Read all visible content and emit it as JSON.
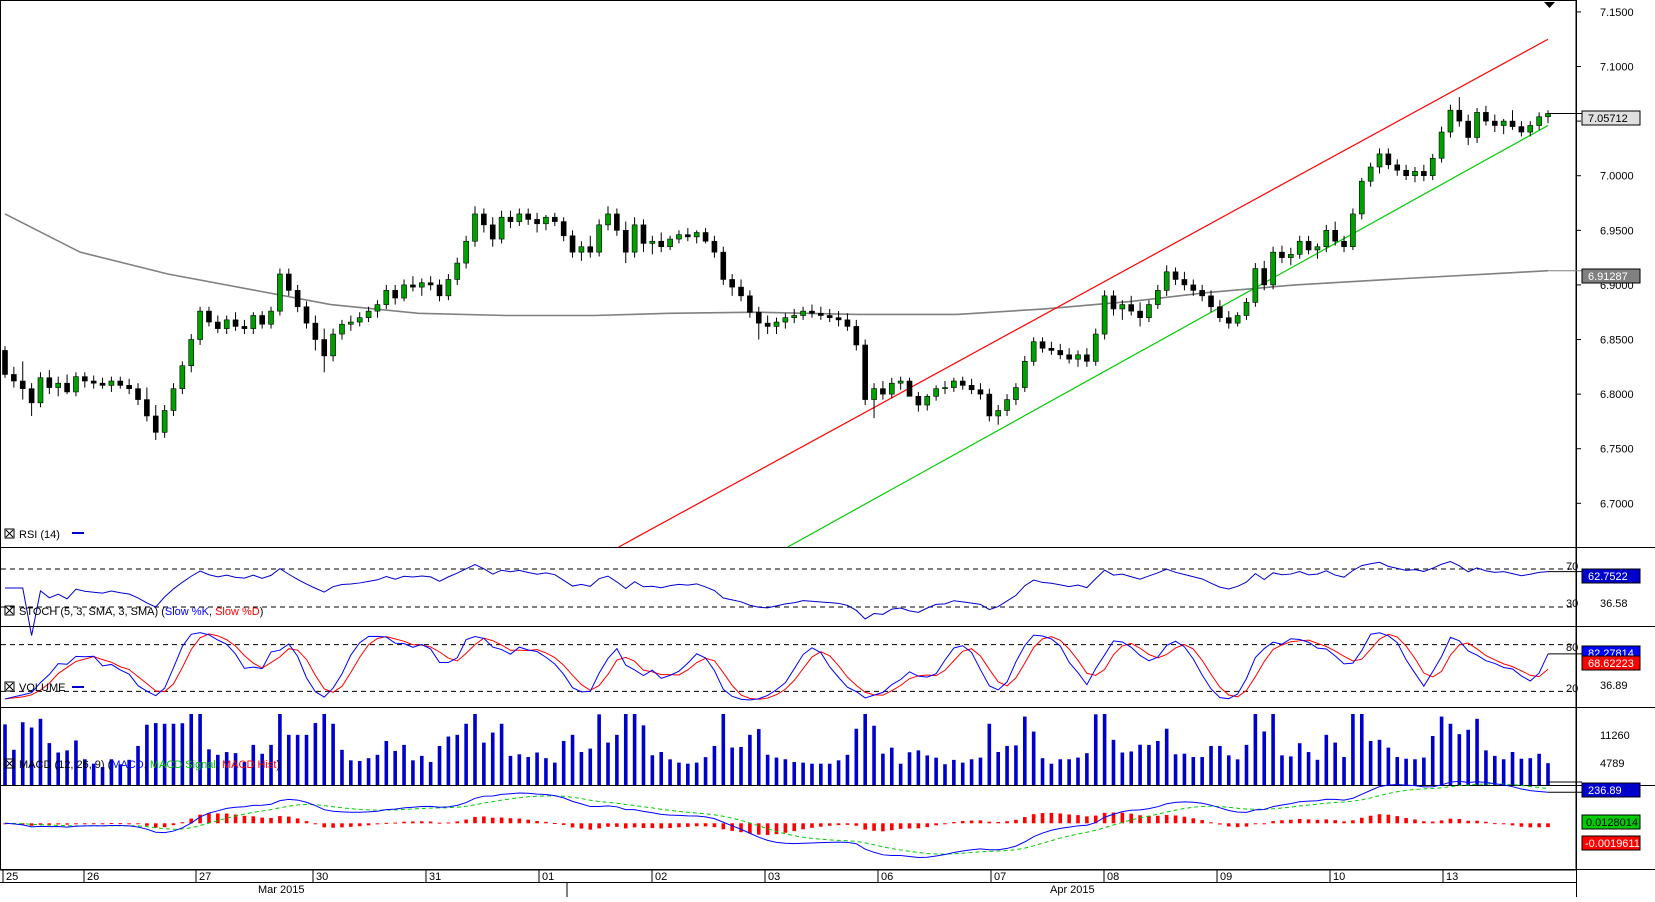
{
  "chart_data": {
    "type": "candlestick",
    "price_panel": {
      "ylim": [
        6.66,
        7.16
      ],
      "yticks": [
        "7.1500",
        "7.1000",
        "7.0500",
        "7.0000",
        "6.9500",
        "6.9000",
        "6.8500",
        "6.8000",
        "6.7500",
        "6.7000"
      ],
      "last_price_label": "7.05712",
      "ma_label": "6.91287",
      "ma_line": [
        [
          0,
          6.965
        ],
        [
          60,
          6.93
        ],
        [
          130,
          6.91
        ],
        [
          200,
          6.895
        ],
        [
          260,
          6.882
        ],
        [
          330,
          6.874
        ],
        [
          400,
          6.872
        ],
        [
          470,
          6.872
        ],
        [
          530,
          6.874
        ],
        [
          600,
          6.875
        ],
        [
          680,
          6.873
        ],
        [
          760,
          6.873
        ],
        [
          830,
          6.878
        ],
        [
          900,
          6.885
        ],
        [
          960,
          6.893
        ],
        [
          1030,
          6.9
        ],
        [
          1120,
          6.906
        ],
        [
          1200,
          6.911
        ],
        [
          1232,
          6.913
        ]
      ],
      "channel_upper": [
        [
          490,
          6.66
        ],
        [
          1232,
          7.125
        ]
      ],
      "channel_lower": [
        [
          625,
          6.66
        ],
        [
          1232,
          7.046
        ]
      ],
      "ohlc": [
        [
          6.84,
          6.844,
          6.815,
          6.818
        ],
        [
          6.818,
          6.825,
          6.806,
          6.812
        ],
        [
          6.812,
          6.83,
          6.795,
          6.805
        ],
        [
          6.805,
          6.81,
          6.78,
          6.792
        ],
        [
          6.792,
          6.82,
          6.788,
          6.815
        ],
        [
          6.815,
          6.822,
          6.8,
          6.806
        ],
        [
          6.806,
          6.816,
          6.798,
          6.81
        ],
        [
          6.81,
          6.818,
          6.8,
          6.802
        ],
        [
          6.802,
          6.82,
          6.798,
          6.816
        ],
        [
          6.816,
          6.82,
          6.806,
          6.812
        ],
        [
          6.812,
          6.817,
          6.805,
          6.81
        ],
        [
          6.81,
          6.815,
          6.805,
          6.808
        ],
        [
          6.808,
          6.816,
          6.802,
          6.812
        ],
        [
          6.812,
          6.816,
          6.805,
          6.808
        ],
        [
          6.808,
          6.814,
          6.8,
          6.805
        ],
        [
          6.805,
          6.81,
          6.79,
          6.795
        ],
        [
          6.795,
          6.806,
          6.775,
          6.78
        ],
        [
          6.78,
          6.79,
          6.758,
          6.765
        ],
        [
          6.765,
          6.79,
          6.76,
          6.785
        ],
        [
          6.785,
          6.81,
          6.78,
          6.805
        ],
        [
          6.805,
          6.83,
          6.8,
          6.826
        ],
        [
          6.826,
          6.855,
          6.82,
          6.85
        ],
        [
          6.85,
          6.88,
          6.845,
          6.876
        ],
        [
          6.876,
          6.88,
          6.862,
          6.866
        ],
        [
          6.866,
          6.872,
          6.856,
          6.86
        ],
        [
          6.86,
          6.872,
          6.855,
          6.868
        ],
        [
          6.868,
          6.875,
          6.858,
          6.862
        ],
        [
          6.862,
          6.868,
          6.855,
          6.86
        ],
        [
          6.86,
          6.875,
          6.855,
          6.872
        ],
        [
          6.872,
          6.876,
          6.86,
          6.864
        ],
        [
          6.864,
          6.88,
          6.86,
          6.876
        ],
        [
          6.876,
          6.915,
          6.872,
          6.91
        ],
        [
          6.91,
          6.915,
          6.89,
          6.895
        ],
        [
          6.895,
          6.9,
          6.875,
          6.88
        ],
        [
          6.88,
          6.885,
          6.86,
          6.865
        ],
        [
          6.865,
          6.872,
          6.84,
          6.85
        ],
        [
          6.85,
          6.86,
          6.82,
          6.835
        ],
        [
          6.835,
          6.86,
          6.83,
          6.855
        ],
        [
          6.855,
          6.868,
          6.85,
          6.864
        ],
        [
          6.864,
          6.872,
          6.858,
          6.866
        ],
        [
          6.866,
          6.875,
          6.862,
          6.87
        ],
        [
          6.87,
          6.88,
          6.866,
          6.876
        ],
        [
          6.876,
          6.886,
          6.87,
          6.882
        ],
        [
          6.882,
          6.9,
          6.878,
          6.895
        ],
        [
          6.895,
          6.9,
          6.882,
          6.888
        ],
        [
          6.888,
          6.905,
          6.885,
          6.9
        ],
        [
          6.9,
          6.908,
          6.894,
          6.898
        ],
        [
          6.898,
          6.906,
          6.89,
          6.902
        ],
        [
          6.902,
          6.908,
          6.895,
          6.9
        ],
        [
          6.9,
          6.905,
          6.885,
          6.89
        ],
        [
          6.89,
          6.91,
          6.886,
          6.905
        ],
        [
          6.905,
          6.925,
          6.9,
          6.92
        ],
        [
          6.92,
          6.945,
          6.915,
          6.94
        ],
        [
          6.94,
          6.972,
          6.935,
          6.965
        ],
        [
          6.965,
          6.97,
          6.948,
          6.955
        ],
        [
          6.955,
          6.962,
          6.935,
          6.942
        ],
        [
          6.942,
          6.968,
          6.938,
          6.962
        ],
        [
          6.962,
          6.968,
          6.952,
          6.958
        ],
        [
          6.958,
          6.97,
          6.954,
          6.965
        ],
        [
          6.965,
          6.97,
          6.955,
          6.96
        ],
        [
          6.96,
          6.966,
          6.948,
          6.956
        ],
        [
          6.956,
          6.964,
          6.95,
          6.962
        ],
        [
          6.962,
          6.966,
          6.954,
          6.958
        ],
        [
          6.958,
          6.962,
          6.94,
          6.945
        ],
        [
          6.945,
          6.95,
          6.925,
          6.93
        ],
        [
          6.93,
          6.94,
          6.922,
          6.935
        ],
        [
          6.935,
          6.945,
          6.925,
          6.93
        ],
        [
          6.93,
          6.96,
          6.926,
          6.955
        ],
        [
          6.955,
          6.972,
          6.95,
          6.965
        ],
        [
          6.965,
          6.97,
          6.945,
          6.95
        ],
        [
          6.95,
          6.958,
          6.92,
          6.93
        ],
        [
          6.93,
          6.962,
          6.925,
          6.955
        ],
        [
          6.955,
          6.96,
          6.93,
          6.938
        ],
        [
          6.938,
          6.945,
          6.928,
          6.94
        ],
        [
          6.94,
          6.948,
          6.93,
          6.935
        ],
        [
          6.935,
          6.945,
          6.932,
          6.942
        ],
        [
          6.942,
          6.95,
          6.938,
          6.946
        ],
        [
          6.946,
          6.952,
          6.94,
          6.944
        ],
        [
          6.944,
          6.95,
          6.938,
          6.948
        ],
        [
          6.948,
          6.952,
          6.938,
          6.94
        ],
        [
          6.94,
          6.945,
          6.925,
          6.93
        ],
        [
          6.93,
          6.935,
          6.9,
          6.905
        ],
        [
          6.905,
          6.91,
          6.89,
          6.898
        ],
        [
          6.898,
          6.905,
          6.885,
          6.89
        ],
        [
          6.89,
          6.895,
          6.87,
          6.875
        ],
        [
          6.875,
          6.88,
          6.85,
          6.865
        ],
        [
          6.865,
          6.872,
          6.855,
          6.862
        ],
        [
          6.862,
          6.87,
          6.855,
          6.866
        ],
        [
          6.866,
          6.874,
          6.86,
          6.87
        ],
        [
          6.87,
          6.878,
          6.865,
          6.872
        ],
        [
          6.872,
          6.88,
          6.868,
          6.876
        ],
        [
          6.876,
          6.882,
          6.87,
          6.874
        ],
        [
          6.874,
          6.88,
          6.868,
          6.872
        ],
        [
          6.872,
          6.878,
          6.866,
          6.87
        ],
        [
          6.87,
          6.876,
          6.862,
          6.868
        ],
        [
          6.868,
          6.874,
          6.858,
          6.862
        ],
        [
          6.862,
          6.868,
          6.84,
          6.845
        ],
        [
          6.845,
          6.85,
          6.79,
          6.795
        ],
        [
          6.795,
          6.81,
          6.778,
          6.805
        ],
        [
          6.805,
          6.812,
          6.795,
          6.8
        ],
        [
          6.8,
          6.815,
          6.796,
          6.81
        ],
        [
          6.81,
          6.816,
          6.804,
          6.812
        ],
        [
          6.812,
          6.815,
          6.8,
          6.798
        ],
        [
          6.798,
          6.802,
          6.784,
          6.79
        ],
        [
          6.79,
          6.8,
          6.785,
          6.798
        ],
        [
          6.798,
          6.808,
          6.794,
          6.805
        ],
        [
          6.805,
          6.812,
          6.8,
          6.806
        ],
        [
          6.806,
          6.815,
          6.802,
          6.812
        ],
        [
          6.812,
          6.816,
          6.804,
          6.808
        ],
        [
          6.808,
          6.814,
          6.8,
          6.804
        ],
        [
          6.804,
          6.81,
          6.795,
          6.8
        ],
        [
          6.8,
          6.805,
          6.775,
          6.78
        ],
        [
          6.78,
          6.79,
          6.772,
          6.785
        ],
        [
          6.785,
          6.8,
          6.78,
          6.795
        ],
        [
          6.795,
          6.81,
          6.79,
          6.806
        ],
        [
          6.806,
          6.835,
          6.802,
          6.83
        ],
        [
          6.83,
          6.852,
          6.826,
          6.848
        ],
        [
          6.848,
          6.852,
          6.838,
          6.842
        ],
        [
          6.842,
          6.848,
          6.836,
          6.84
        ],
        [
          6.84,
          6.846,
          6.832,
          6.836
        ],
        [
          6.836,
          6.842,
          6.828,
          6.832
        ],
        [
          6.832,
          6.84,
          6.825,
          6.836
        ],
        [
          6.836,
          6.842,
          6.825,
          6.83
        ],
        [
          6.83,
          6.86,
          6.826,
          6.855
        ],
        [
          6.855,
          6.895,
          6.85,
          6.89
        ],
        [
          6.89,
          6.895,
          6.872,
          6.878
        ],
        [
          6.878,
          6.886,
          6.868,
          6.882
        ],
        [
          6.882,
          6.89,
          6.872,
          6.876
        ],
        [
          6.876,
          6.884,
          6.862,
          6.87
        ],
        [
          6.87,
          6.886,
          6.866,
          6.882
        ],
        [
          6.882,
          6.9,
          6.878,
          6.895
        ],
        [
          6.895,
          6.918,
          6.89,
          6.912
        ],
        [
          6.912,
          6.916,
          6.9,
          6.905
        ],
        [
          6.905,
          6.912,
          6.895,
          6.9
        ],
        [
          6.9,
          6.905,
          6.89,
          6.895
        ],
        [
          6.895,
          6.9,
          6.885,
          6.89
        ],
        [
          6.89,
          6.895,
          6.875,
          6.88
        ],
        [
          6.88,
          6.886,
          6.866,
          6.87
        ],
        [
          6.87,
          6.876,
          6.86,
          6.865
        ],
        [
          6.865,
          6.875,
          6.862,
          6.872
        ],
        [
          6.872,
          6.888,
          6.868,
          6.884
        ],
        [
          6.884,
          6.92,
          6.88,
          6.915
        ],
        [
          6.915,
          6.922,
          6.895,
          6.9
        ],
        [
          6.9,
          6.935,
          6.896,
          6.93
        ],
        [
          6.93,
          6.936,
          6.92,
          6.925
        ],
        [
          6.925,
          6.934,
          6.918,
          6.928
        ],
        [
          6.928,
          6.945,
          6.924,
          6.94
        ],
        [
          6.94,
          6.945,
          6.928,
          6.932
        ],
        [
          6.932,
          6.938,
          6.924,
          6.935
        ],
        [
          6.935,
          6.955,
          6.93,
          6.95
        ],
        [
          6.95,
          6.958,
          6.936,
          6.94
        ],
        [
          6.94,
          6.945,
          6.93,
          6.935
        ],
        [
          6.935,
          6.97,
          6.932,
          6.965
        ],
        [
          6.965,
          6.998,
          6.96,
          6.995
        ],
        [
          6.995,
          7.012,
          6.99,
          7.008
        ],
        [
          7.008,
          7.025,
          7.002,
          7.02
        ],
        [
          7.02,
          7.025,
          7.006,
          7.01
        ],
        [
          7.01,
          7.015,
          7.0,
          7.005
        ],
        [
          7.005,
          7.01,
          6.996,
          7.0
        ],
        [
          7.0,
          7.008,
          6.994,
          7.004
        ],
        [
          7.004,
          7.01,
          6.995,
          7.0
        ],
        [
          7.0,
          7.02,
          6.996,
          7.016
        ],
        [
          7.016,
          7.045,
          7.012,
          7.04
        ],
        [
          7.04,
          7.065,
          7.035,
          7.06
        ],
        [
          7.06,
          7.072,
          7.045,
          7.05
        ],
        [
          7.05,
          7.056,
          7.028,
          7.035
        ],
        [
          7.035,
          7.062,
          7.03,
          7.058
        ],
        [
          7.058,
          7.064,
          7.046,
          7.05
        ],
        [
          7.05,
          7.056,
          7.04,
          7.046
        ],
        [
          7.046,
          7.052,
          7.038,
          7.05
        ],
        [
          7.05,
          7.06,
          7.042,
          7.045
        ],
        [
          7.045,
          7.05,
          7.036,
          7.04
        ],
        [
          7.04,
          7.05,
          7.036,
          7.046
        ],
        [
          7.046,
          7.058,
          7.042,
          7.054
        ],
        [
          7.054,
          7.06,
          7.048,
          7.057
        ]
      ]
    },
    "rsi_panel": {
      "title": "RSI (14)",
      "levels": [
        70,
        30
      ],
      "level_labels": [
        "70",
        "30"
      ],
      "min_label": "36.58",
      "last_label": "62.7522",
      "ylim": [
        10,
        90
      ]
    },
    "stoch_panel": {
      "title": "STOCH (5, 3, SMA, 3, SMA)",
      "slow_k_name": "Slow %K",
      "slow_d_name": "Slow %D",
      "levels": [
        80,
        20
      ],
      "level_labels": [
        "80",
        "20"
      ],
      "min_label": "36.89",
      "last_k_label": "82.27814",
      "last_d_label": "68.62223",
      "ylim": [
        0,
        100
      ]
    },
    "volume_panel": {
      "title": "VOLUME",
      "tick_labels": [
        "11260",
        "4789"
      ],
      "last_label": "236.89",
      "ylim": [
        0,
        16000
      ]
    },
    "macd_panel": {
      "title": "MACD (12, 26, 9)",
      "macd_name": "MACD",
      "signal_name": "MACD Signal",
      "hist_name": "MACD Hist",
      "last_macd_label": "0.0128014",
      "last_signal_label": "-0.0019611",
      "ylim": [
        -0.04,
        0.03
      ]
    },
    "x_axis": {
      "day_labels": [
        {
          "label": "25",
          "x": 3
        },
        {
          "label": "26",
          "x": 84
        },
        {
          "label": "27",
          "x": 196
        },
        {
          "label": "30",
          "x": 313
        },
        {
          "label": "31",
          "x": 426
        },
        {
          "label": "01",
          "x": 539
        },
        {
          "label": "02",
          "x": 652
        },
        {
          "label": "03",
          "x": 765
        },
        {
          "label": "06",
          "x": 878
        },
        {
          "label": "07",
          "x": 991
        },
        {
          "label": "08",
          "x": 1104
        },
        {
          "label": "09",
          "x": 1217
        },
        {
          "label": "10",
          "x": 1330
        },
        {
          "label": "13",
          "x": 1443
        }
      ],
      "month_labels": [
        {
          "label": "Mar 2015",
          "x": 268
        },
        {
          "label": "Apr 2015",
          "x": 1016
        }
      ]
    },
    "colors": {
      "up_candle": "#00a000",
      "down_candle": "#000000",
      "ma": "#808080",
      "channel_upper": "#ff0000",
      "channel_lower": "#00cc00",
      "rsi": "#0000cc",
      "slow_k": "#0000ff",
      "slow_d": "#ff0000",
      "volume": "#0000cc",
      "macd": "#0000ff",
      "macd_signal": "#00cc00",
      "macd_hist": "#ff0000"
    }
  }
}
